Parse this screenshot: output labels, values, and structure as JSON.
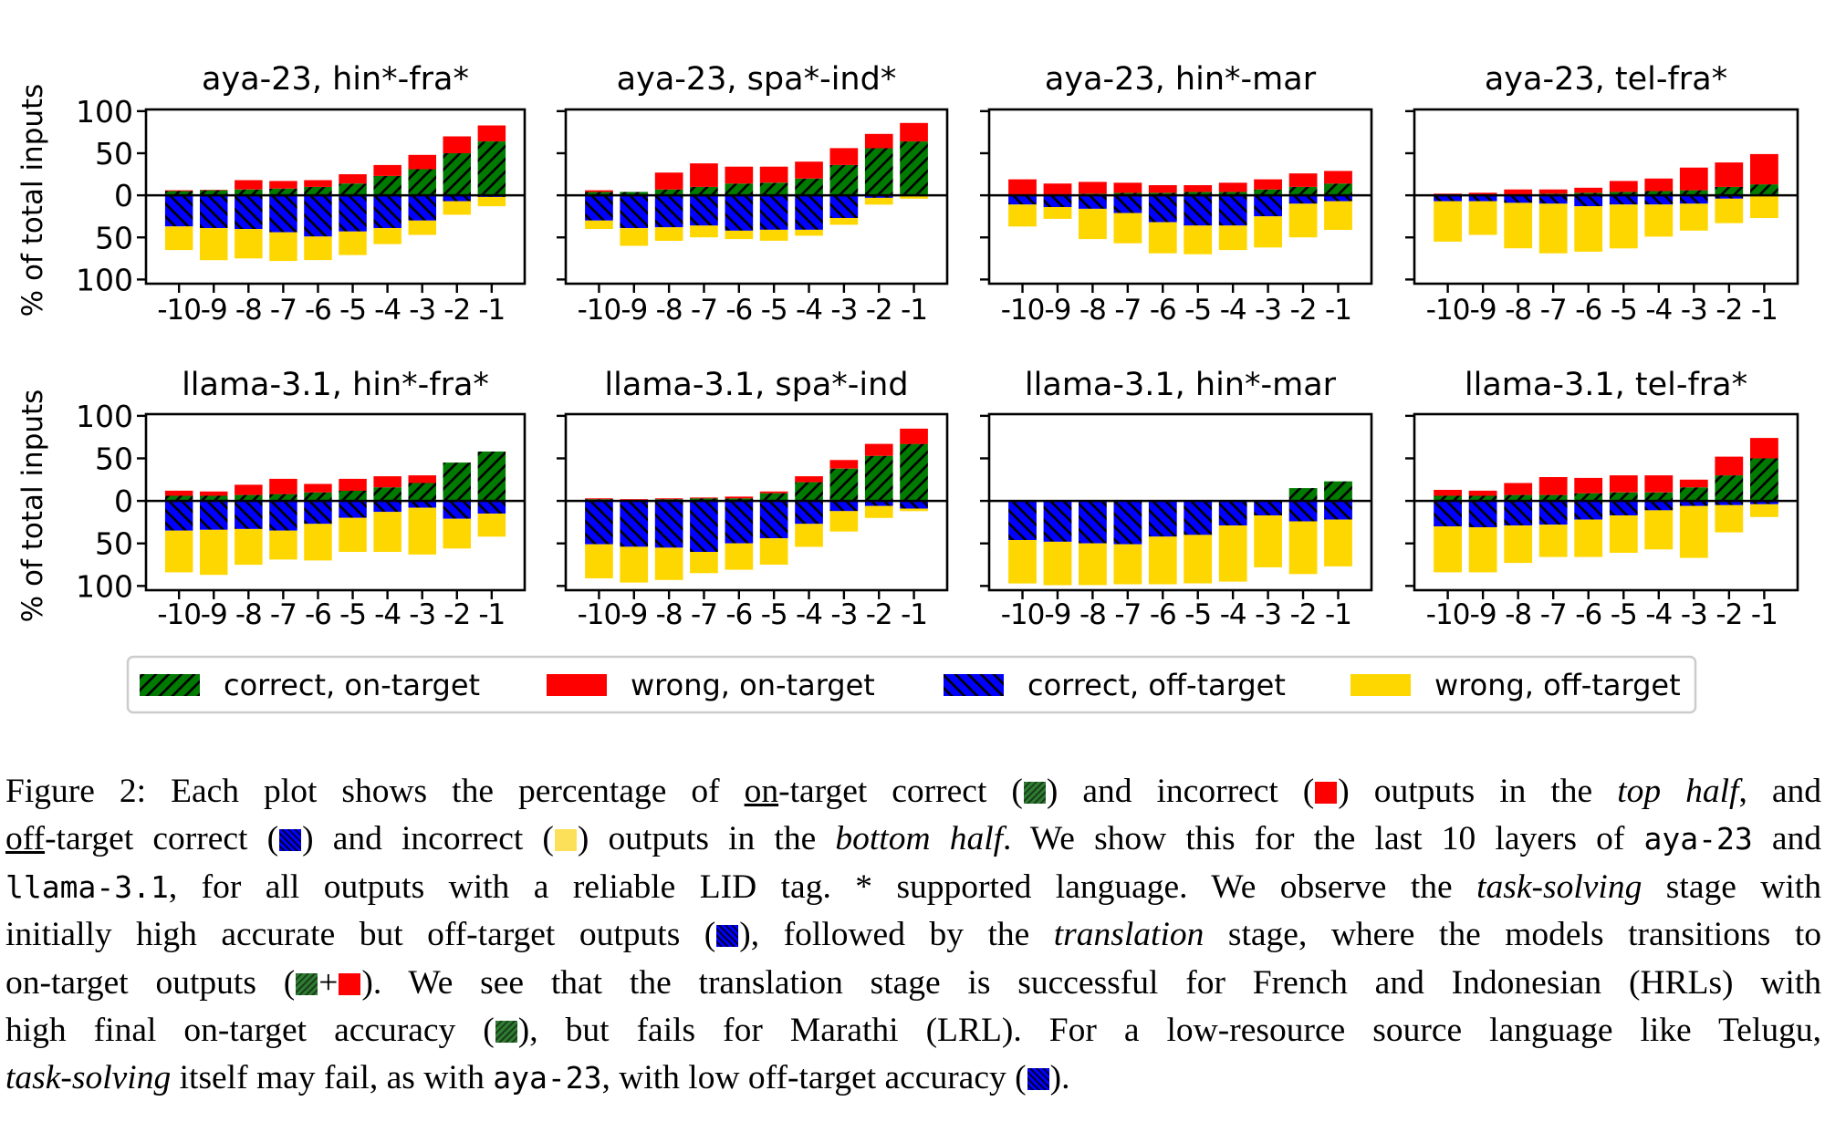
{
  "chart_data": {
    "type": "bar",
    "subtype": "diverging-stacked-bar-grid",
    "ylabel": "% of total inputs",
    "ylim": [
      -105,
      102
    ],
    "yticks": [
      100,
      50,
      0,
      50,
      100
    ],
    "ytick_values": [
      100,
      50,
      0,
      -50,
      -100
    ],
    "categories": [
      "-10",
      "-9",
      "-8",
      "-7",
      "-6",
      "-5",
      "-4",
      "-3",
      "-2",
      "-1"
    ],
    "category_labels": [
      "-10",
      "-9",
      "-8",
      "-7",
      "-6",
      "-5",
      "-4",
      "-3",
      "-2",
      "-1"
    ],
    "grid": false,
    "legend": {
      "placement": "bottom-center",
      "entries": [
        {
          "key": "correct_on",
          "label": "correct, on-target",
          "color": "#007a00",
          "hatch": "//"
        },
        {
          "key": "wrong_on",
          "label": "wrong, on-target",
          "color": "#ff0000",
          "hatch": ""
        },
        {
          "key": "correct_off",
          "label": "correct, off-target",
          "color": "#0000ff",
          "hatch": "\\\\"
        },
        {
          "key": "wrong_off",
          "label": "wrong, off-target",
          "color": "#ffd700",
          "hatch": ""
        }
      ]
    },
    "panels": [
      {
        "title": "aya-23, hin*-fra*",
        "row": 0,
        "col": 0,
        "correct_on": [
          5,
          6,
          7,
          8,
          10,
          14,
          23,
          31,
          50,
          64
        ],
        "wrong_on": [
          1,
          0.5,
          11,
          9,
          8,
          11,
          13,
          17,
          20,
          19
        ],
        "correct_off": [
          37,
          39,
          40,
          44,
          49,
          43,
          39,
          30,
          7,
          2
        ],
        "wrong_off": [
          28,
          38,
          35,
          34,
          28,
          28,
          19,
          17,
          16,
          11
        ]
      },
      {
        "title": "aya-23, spa*-ind*",
        "row": 0,
        "col": 1,
        "correct_on": [
          4,
          4,
          7,
          10,
          14,
          15,
          20,
          36,
          56,
          64
        ],
        "wrong_on": [
          2,
          0,
          20,
          28,
          20,
          19,
          20,
          20,
          17,
          22
        ],
        "correct_off": [
          30,
          39,
          38,
          36,
          42,
          41,
          41,
          27,
          3,
          1
        ],
        "wrong_off": [
          10,
          21,
          16,
          14,
          10,
          13,
          7,
          8,
          8,
          3
        ]
      },
      {
        "title": "aya-23, hin*-mar",
        "row": 0,
        "col": 2,
        "correct_on": [
          0,
          0,
          2,
          3,
          3,
          4,
          4,
          7,
          10,
          14
        ],
        "wrong_on": [
          19,
          14,
          14,
          12,
          9,
          8,
          11,
          12,
          16,
          15
        ],
        "correct_off": [
          11,
          14,
          16,
          21,
          32,
          36,
          36,
          25,
          10,
          7
        ],
        "wrong_off": [
          26,
          14,
          36,
          36,
          37,
          34,
          29,
          37,
          40,
          34
        ]
      },
      {
        "title": "aya-23, tel-fra*",
        "row": 0,
        "col": 3,
        "correct_on": [
          0,
          0,
          1,
          2,
          3,
          4,
          5,
          6,
          10,
          13
        ],
        "wrong_on": [
          2,
          3,
          6,
          5,
          6,
          13,
          15,
          27,
          29,
          36
        ],
        "correct_off": [
          7,
          7,
          9,
          10,
          13,
          11,
          11,
          10,
          4,
          1
        ],
        "wrong_off": [
          48,
          40,
          54,
          59,
          54,
          52,
          38,
          32,
          29,
          26
        ]
      },
      {
        "title": "llama-3.1, hin*-fra*",
        "row": 1,
        "col": 0,
        "correct_on": [
          6,
          6,
          7,
          8,
          10,
          12,
          16,
          21,
          45,
          58
        ],
        "wrong_on": [
          6,
          5,
          12,
          18,
          10,
          14,
          13,
          9,
          0,
          0
        ],
        "correct_off": [
          35,
          34,
          33,
          35,
          27,
          20,
          13,
          8,
          21,
          15
        ],
        "wrong_off": [
          49,
          53,
          42,
          34,
          43,
          40,
          47,
          55,
          35,
          27
        ]
      },
      {
        "title": "llama-3.1, spa*-ind",
        "row": 1,
        "col": 1,
        "correct_on": [
          2,
          1,
          2,
          3,
          3,
          9,
          22,
          38,
          53,
          67
        ],
        "wrong_on": [
          1,
          1,
          1,
          1,
          2,
          2,
          7,
          10,
          14,
          18
        ],
        "correct_off": [
          51,
          54,
          55,
          60,
          50,
          44,
          27,
          12,
          6,
          9
        ],
        "wrong_off": [
          40,
          42,
          38,
          25,
          31,
          31,
          27,
          24,
          14,
          3
        ]
      },
      {
        "title": "llama-3.1, hin*-mar",
        "row": 1,
        "col": 2,
        "correct_on": [
          0,
          0,
          0,
          0,
          0,
          0,
          0,
          0,
          15,
          23
        ],
        "wrong_on": [
          0,
          0,
          0,
          0,
          0,
          0,
          0,
          0,
          0,
          0
        ],
        "correct_off": [
          46,
          48,
          50,
          51,
          42,
          40,
          29,
          17,
          24,
          22
        ],
        "wrong_off": [
          51,
          51,
          49,
          47,
          56,
          57,
          66,
          61,
          62,
          55
        ]
      },
      {
        "title": "llama-3.1, tel-fra*",
        "row": 1,
        "col": 3,
        "correct_on": [
          6,
          6,
          7,
          7,
          9,
          10,
          10,
          16,
          30,
          50
        ],
        "wrong_on": [
          7,
          6,
          14,
          21,
          18,
          20,
          20,
          9,
          22,
          24
        ],
        "correct_off": [
          30,
          31,
          29,
          28,
          22,
          17,
          11,
          6,
          5,
          4
        ],
        "wrong_off": [
          54,
          53,
          44,
          38,
          44,
          44,
          46,
          61,
          32,
          15
        ]
      }
    ]
  },
  "caption": {
    "lines": [
      [
        {
          "t": "Figure 2: Each plot shows the percentage of "
        },
        {
          "t": "on",
          "s": "ul"
        },
        {
          "t": "-target correct ("
        },
        {
          "sw": "green"
        },
        {
          "t": ") and incorrect ("
        },
        {
          "sw": "red"
        },
        {
          "t": ") outputs in the "
        },
        {
          "t": "top half",
          "s": "em"
        },
        {
          "t": ", and"
        }
      ],
      [
        {
          "t": "off",
          "s": "ul"
        },
        {
          "t": "-target correct ("
        },
        {
          "sw": "blue"
        },
        {
          "t": ") and incorrect ("
        },
        {
          "sw": "yellow"
        },
        {
          "t": ") outputs in the "
        },
        {
          "t": "bottom half",
          "s": "em"
        },
        {
          "t": ". We show this for the last 10 layers of "
        },
        {
          "t": "aya-23",
          "s": "mono"
        },
        {
          "t": " and"
        }
      ],
      [
        {
          "t": "llama-3.1",
          "s": "mono"
        },
        {
          "t": ", for all outputs with a reliable LID tag. * supported language. We observe the "
        },
        {
          "t": "task-solving",
          "s": "em"
        },
        {
          "t": " stage with"
        }
      ],
      [
        {
          "t": "initially high accurate but off-target outputs ("
        },
        {
          "sw": "blue"
        },
        {
          "t": "), followed by the "
        },
        {
          "t": "translation",
          "s": "em"
        },
        {
          "t": " stage, where the models transitions to"
        }
      ],
      [
        {
          "t": "on-target outputs ("
        },
        {
          "sw": "green"
        },
        {
          "t": "+"
        },
        {
          "sw": "red"
        },
        {
          "t": "). We see that the translation stage is successful for French and Indonesian (HRLs) with"
        }
      ],
      [
        {
          "t": "high final on-target accuracy ("
        },
        {
          "sw": "green"
        },
        {
          "t": "), but fails for Marathi (LRL). For a low-resource source language like Telugu,"
        }
      ],
      [
        {
          "t": "task-solving",
          "s": "em"
        },
        {
          "t": " itself may fail, as with "
        },
        {
          "t": "aya-23",
          "s": "mono"
        },
        {
          "t": ", with low off-target accuracy ("
        },
        {
          "sw": "blue"
        },
        {
          "t": ")."
        }
      ]
    ]
  }
}
